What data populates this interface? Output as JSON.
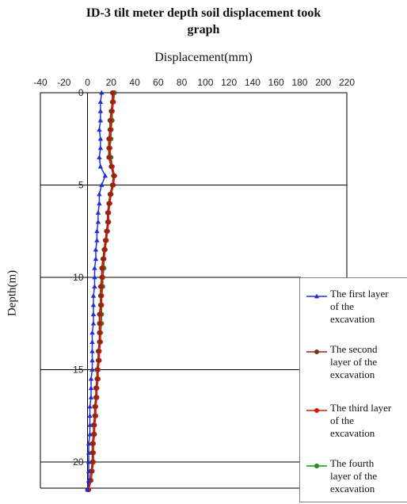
{
  "chart_data": {
    "type": "line",
    "title": "ID-3 tilt meter depth soil displacement took graph",
    "title_lines": [
      "ID-3 tilt meter depth soil displacement took",
      "graph"
    ],
    "xlabel": "Displacement(mm)",
    "ylabel": "Depth(m)",
    "xlim": [
      -40,
      220
    ],
    "ylim": [
      0,
      22
    ],
    "x_ticks": [
      -40,
      -20,
      0,
      20,
      40,
      60,
      80,
      100,
      120,
      140,
      160,
      180,
      200,
      220
    ],
    "y_ticks": [
      0,
      5,
      10,
      15,
      20
    ],
    "y_axis": "depth increasing downward",
    "grid": "horizontal",
    "legend_position": "right",
    "depth": [
      0,
      0.5,
      1,
      1.5,
      2,
      2.5,
      3,
      3.5,
      4,
      4.5,
      5,
      5.5,
      6,
      6.5,
      7,
      7.5,
      8,
      8.5,
      9,
      9.5,
      10,
      10.5,
      11,
      11.5,
      12,
      12.5,
      13,
      13.5,
      14,
      14.5,
      15,
      15.5,
      16,
      16.5,
      17,
      17.5,
      18,
      18.5,
      19,
      19.5,
      20,
      20.5,
      21,
      21.5
    ],
    "series": [
      {
        "name": "The first layer of the excavation",
        "color": "#1f2fd8",
        "marker": "triangle",
        "values": [
          12,
          11,
          11,
          11,
          10,
          11,
          11,
          10,
          11,
          15,
          12,
          10,
          10,
          9,
          9,
          8,
          8,
          7,
          7,
          6,
          6,
          6,
          5,
          5,
          5,
          5,
          4,
          4,
          4,
          4,
          4,
          3,
          3,
          3,
          2,
          2,
          2,
          2,
          1,
          1,
          1,
          1,
          1,
          0
        ]
      },
      {
        "name": "The second layer of the excavation",
        "color": "#8b2a12",
        "marker": "dot",
        "values": [
          21,
          21,
          20,
          19,
          19,
          18,
          18,
          18,
          20,
          22,
          21,
          19,
          18,
          17,
          17,
          16,
          15,
          14,
          13,
          12,
          12,
          11,
          11,
          11,
          10,
          10,
          10,
          10,
          9,
          9,
          8,
          8,
          7,
          7,
          6,
          6,
          5,
          5,
          4,
          4,
          4,
          3,
          2,
          0
        ]
      },
      {
        "name": "The third layer of the excavation",
        "color": "#e01414",
        "marker": "dot",
        "values": [
          22,
          22,
          21,
          20,
          20,
          19,
          19,
          19,
          21,
          23,
          22,
          20,
          19,
          18,
          18,
          17,
          16,
          15,
          14,
          13,
          13,
          12,
          12,
          12,
          11,
          11,
          11,
          11,
          10,
          10,
          9,
          9,
          8,
          8,
          7,
          7,
          6,
          6,
          5,
          5,
          5,
          4,
          3,
          1
        ]
      },
      {
        "name": "The fourth layer of the excavation",
        "color": "#1f8f1f",
        "marker": "dot",
        "values": [
          23,
          22,
          21,
          21,
          20,
          20,
          19,
          20,
          21,
          23,
          22,
          20,
          19,
          18,
          18,
          17,
          16,
          15,
          14,
          14,
          13,
          13,
          12,
          12,
          12,
          12,
          11,
          11,
          10,
          10,
          9,
          9,
          8,
          8,
          7,
          7,
          6,
          6,
          5,
          5,
          5,
          4,
          3,
          1
        ]
      }
    ]
  },
  "legend": {
    "items": [
      {
        "lines": [
          "The first layer",
          "of the",
          "excavation"
        ],
        "color": "#1f2fd8",
        "marker": "triangle"
      },
      {
        "lines": [
          "The second",
          "layer of the",
          "excavation"
        ],
        "color": "#8b2a12",
        "marker": "dot"
      },
      {
        "lines": [
          "The third layer",
          "of the",
          "excavation"
        ],
        "color": "#e01414",
        "marker": "dot"
      },
      {
        "lines": [
          "The fourth",
          "layer of the",
          "excavation"
        ],
        "color": "#1f8f1f",
        "marker": "dot"
      }
    ]
  }
}
